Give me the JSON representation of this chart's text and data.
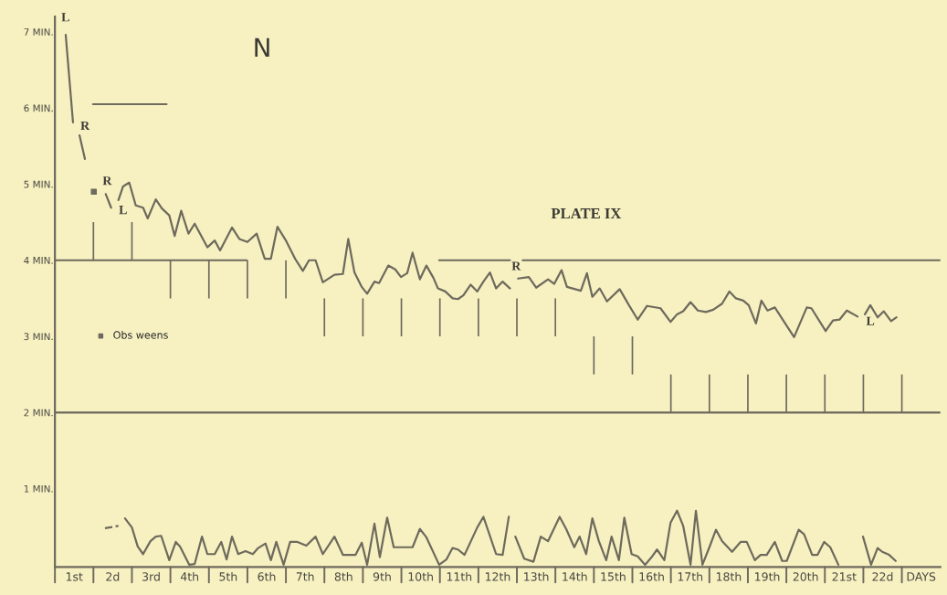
{
  "chart_data": {
    "type": "line",
    "title": "PLATE IX",
    "xlim": [
      0,
      23
    ],
    "ylim": [
      -0.03,
      7.2
    ],
    "xticks": [
      {
        "value": 0.5,
        "label": "1st"
      },
      {
        "value": 1.5,
        "label": "2d"
      },
      {
        "value": 2.5,
        "label": "3rd"
      },
      {
        "value": 3.5,
        "label": "4th"
      },
      {
        "value": 4.5,
        "label": "5th"
      },
      {
        "value": 5.5,
        "label": "6th"
      },
      {
        "value": 6.5,
        "label": "7th"
      },
      {
        "value": 7.5,
        "label": "8th"
      },
      {
        "value": 8.5,
        "label": "9th"
      },
      {
        "value": 9.5,
        "label": "10th"
      },
      {
        "value": 10.5,
        "label": "11th"
      },
      {
        "value": 11.5,
        "label": "12th"
      },
      {
        "value": 12.5,
        "label": "13th"
      },
      {
        "value": 13.5,
        "label": "14th"
      },
      {
        "value": 14.5,
        "label": "15th"
      },
      {
        "value": 15.5,
        "label": "16th"
      },
      {
        "value": 16.5,
        "label": "17th"
      },
      {
        "value": 17.5,
        "label": "18th"
      },
      {
        "value": 18.5,
        "label": "19th"
      },
      {
        "value": 19.5,
        "label": "20th"
      },
      {
        "value": 20.5,
        "label": "21st"
      },
      {
        "value": 21.5,
        "label": "22d"
      },
      {
        "value": 22.5,
        "label": "DAYS"
      }
    ],
    "yticks": [
      {
        "value": 1,
        "label": "1 MIN."
      },
      {
        "value": 2,
        "label": "2 MIN."
      },
      {
        "value": 3,
        "label": "3 MIN."
      },
      {
        "value": 4,
        "label": "4 MIN."
      },
      {
        "value": 5,
        "label": "5 MIN."
      },
      {
        "value": 6,
        "label": "6 MIN."
      },
      {
        "value": 7,
        "label": "7 MIN."
      }
    ],
    "grid": false,
    "marker": "none",
    "line_style": "solid",
    "legend": "left",
    "ref_lines": [
      {
        "axis": "y",
        "value": 2,
        "color": "#6e6a5c"
      }
    ],
    "annotations": [
      "N",
      "L",
      "R",
      "R",
      "L",
      "R",
      "L"
    ],
    "series": [
      {
        "color": "#6e6a5c",
        "x": [
          0.28,
          0.47,
          0.55,
          0.64,
          0.78,
          1.0,
          1.32,
          1.46,
          1.55,
          1.65,
          1.77,
          1.93,
          2.1,
          2.29,
          2.41,
          2.62,
          2.78,
          2.97,
          3.11,
          3.28,
          3.47,
          3.63,
          3.96,
          4.15,
          4.29,
          4.6,
          4.79,
          5.0,
          5.24,
          5.45,
          5.61,
          5.78,
          6.01,
          6.25,
          6.44,
          6.6,
          6.77,
          6.96,
          7.26,
          7.48,
          7.62,
          7.78,
          7.97,
          8.11,
          8.3,
          8.42,
          8.66,
          8.84,
          8.99,
          9.15,
          9.29,
          9.48,
          9.65,
          9.83,
          9.95,
          10.14,
          10.33,
          10.47,
          10.61,
          10.8,
          10.97,
          11.13,
          11.3,
          11.46,
          11.63,
          11.82,
          11.9,
          12.03,
          12.31,
          12.5,
          12.81,
          12.97,
          13.16,
          13.3,
          13.66,
          13.82,
          13.96,
          14.15,
          14.34,
          14.67,
          14.91,
          15.14,
          15.38,
          15.73,
          15.99,
          16.16,
          16.32,
          16.51,
          16.7,
          16.91,
          17.1,
          17.33,
          17.52,
          17.69,
          17.88,
          18.02,
          18.21,
          18.35,
          18.51,
          18.7,
          19.2,
          19.53,
          19.65,
          20.02,
          20.21,
          20.38,
          20.57,
          20.85,
          20.95,
          21.04,
          21.18,
          21.37,
          21.53,
          21.72,
          21.86
        ],
        "values": [
          6.96,
          5.81,
          null,
          5.64,
          5.33,
          null,
          4.87,
          4.69,
          null,
          4.79,
          4.97,
          5.02,
          4.72,
          4.69,
          4.55,
          4.8,
          4.68,
          4.59,
          4.32,
          4.65,
          4.35,
          4.48,
          4.17,
          4.26,
          4.13,
          4.43,
          4.28,
          4.24,
          4.35,
          4.02,
          4.02,
          4.44,
          4.25,
          4.01,
          3.86,
          4.0,
          4.0,
          3.71,
          3.81,
          3.82,
          4.28,
          3.84,
          3.65,
          3.56,
          3.72,
          3.7,
          3.93,
          3.88,
          3.78,
          3.83,
          4.1,
          3.75,
          3.93,
          3.77,
          3.63,
          3.59,
          3.5,
          3.49,
          3.54,
          3.68,
          3.59,
          3.72,
          3.84,
          3.63,
          3.72,
          3.63,
          null,
          3.76,
          3.78,
          3.64,
          3.75,
          3.69,
          3.87,
          3.65,
          3.6,
          3.83,
          3.52,
          3.63,
          3.46,
          3.62,
          3.41,
          3.22,
          3.4,
          3.37,
          3.19,
          3.29,
          3.33,
          3.45,
          3.34,
          3.32,
          3.35,
          3.43,
          3.59,
          3.5,
          3.47,
          3.41,
          3.17,
          3.47,
          3.34,
          3.38,
          2.99,
          3.38,
          3.37,
          3.07,
          3.21,
          3.22,
          3.34,
          3.26,
          null,
          3.29,
          3.41,
          3.25,
          3.33,
          3.2,
          3.25
        ]
      },
      {
        "color": "#6e6a5c",
        "x": [
          1.82,
          2.0,
          2.15,
          2.29,
          2.48,
          2.62,
          2.76,
          2.97,
          3.14,
          3.25,
          3.49,
          3.63,
          3.82,
          3.96,
          4.15,
          4.32,
          4.46,
          4.6,
          4.76,
          4.95,
          5.14,
          5.28,
          5.47,
          5.61,
          5.75,
          5.94,
          6.11,
          6.3,
          6.53,
          6.77,
          6.96,
          7.26,
          7.48,
          7.81,
          7.97,
          8.11,
          8.3,
          8.44,
          8.63,
          8.8,
          9.29,
          9.48,
          9.65,
          9.98,
          10.17,
          10.33,
          10.47,
          10.64,
          10.97,
          11.13,
          11.46,
          11.63,
          11.79,
          11.87,
          11.96,
          12.19,
          12.43,
          12.62,
          12.81,
          13.11,
          13.28,
          13.49,
          13.63,
          13.8,
          13.96,
          14.13,
          14.32,
          14.46,
          14.65,
          14.79,
          14.98,
          15.14,
          15.33,
          15.5,
          15.64,
          15.83,
          15.99,
          16.16,
          16.32,
          16.51,
          16.65,
          16.82,
          17.0,
          17.17,
          17.33,
          17.59,
          17.81,
          17.97,
          18.18,
          18.33,
          18.49,
          18.7,
          18.89,
          19.01,
          19.32,
          19.46,
          19.67,
          19.81,
          19.98,
          20.14,
          20.35,
          20.6,
          20.99,
          21.2,
          21.37,
          21.49,
          21.67,
          21.84
        ],
        "values": [
          0.61,
          0.49,
          0.24,
          0.14,
          0.31,
          0.37,
          0.38,
          0.06,
          0.3,
          0.24,
          0,
          0.01,
          0.37,
          0.14,
          0.14,
          0.3,
          0.07,
          0.37,
          0.14,
          0.18,
          0.14,
          0.22,
          0.28,
          0.06,
          0.3,
          0,
          0.3,
          0.3,
          0.25,
          0.37,
          0.14,
          0.37,
          0.13,
          0.13,
          0.29,
          0,
          0.54,
          0.1,
          0.62,
          0.23,
          0.23,
          0.47,
          0.36,
          0,
          0.07,
          0.22,
          0.2,
          0.13,
          0.49,
          0.63,
          0.14,
          0.13,
          0.63,
          null,
          0.37,
          0.08,
          0.04,
          0.37,
          0.31,
          0.63,
          0.47,
          0.23,
          0.37,
          0.14,
          0.61,
          0.31,
          0.06,
          0.37,
          0.06,
          0.62,
          0.14,
          0.11,
          0,
          0.1,
          0.2,
          0.06,
          0.55,
          0.71,
          0.51,
          0,
          0.71,
          0,
          0.23,
          0.46,
          0.31,
          0.17,
          0.3,
          0.3,
          0.06,
          0.13,
          0.13,
          0.3,
          0.05,
          0.05,
          0.46,
          0.4,
          0.13,
          0.13,
          0.3,
          0.23,
          0,
          null,
          0.37,
          0,
          0.22,
          0.17,
          0.13,
          0.05
        ]
      },
      {
        "color": "#6e6a5c",
        "line_style": "dashed",
        "x": [
          1.3,
          1.65
        ],
        "values": [
          0.48,
          0.51
        ]
      },
      {
        "color": "#6e6a5c",
        "x": [
          0.99,
          2.9
        ],
        "values": [
          6.05,
          6.05
        ]
      },
      {
        "color": "#6e6a5c",
        "x": [
          0,
          4.98,
          5.5,
          9.98,
          11.82,
          11.9,
          12.15,
          23
        ],
        "values": [
          4,
          4,
          null,
          4,
          4,
          null,
          4,
          4
        ]
      },
      {
        "type": "bar",
        "color": "#6e6a5c",
        "x": [
          1,
          2,
          3,
          4,
          5,
          6,
          7,
          8,
          9,
          10,
          11,
          12,
          13,
          14,
          15,
          16,
          17,
          18,
          19,
          20,
          21,
          22
        ],
        "base": [
          4,
          4,
          3.5,
          3.5,
          3.5,
          3.5,
          3,
          3,
          3,
          3,
          3,
          3,
          3,
          2.5,
          2.5,
          2,
          2,
          2,
          2,
          2,
          2,
          2
        ],
        "values": [
          0.5,
          0.5,
          0.5,
          0.5,
          0.5,
          0.5,
          0.5,
          0.5,
          0.5,
          0.5,
          0.5,
          0.5,
          0.5,
          0.5,
          0.5,
          0.5,
          0.5,
          0.5,
          0.5,
          0.5,
          0.5,
          0.5
        ]
      },
      {
        "type": "scatter",
        "name": "Obs weens",
        "color": "#6e6a5c",
        "marker": "square",
        "x": [
          1.01
        ],
        "values": [
          4.9
        ]
      }
    ]
  }
}
